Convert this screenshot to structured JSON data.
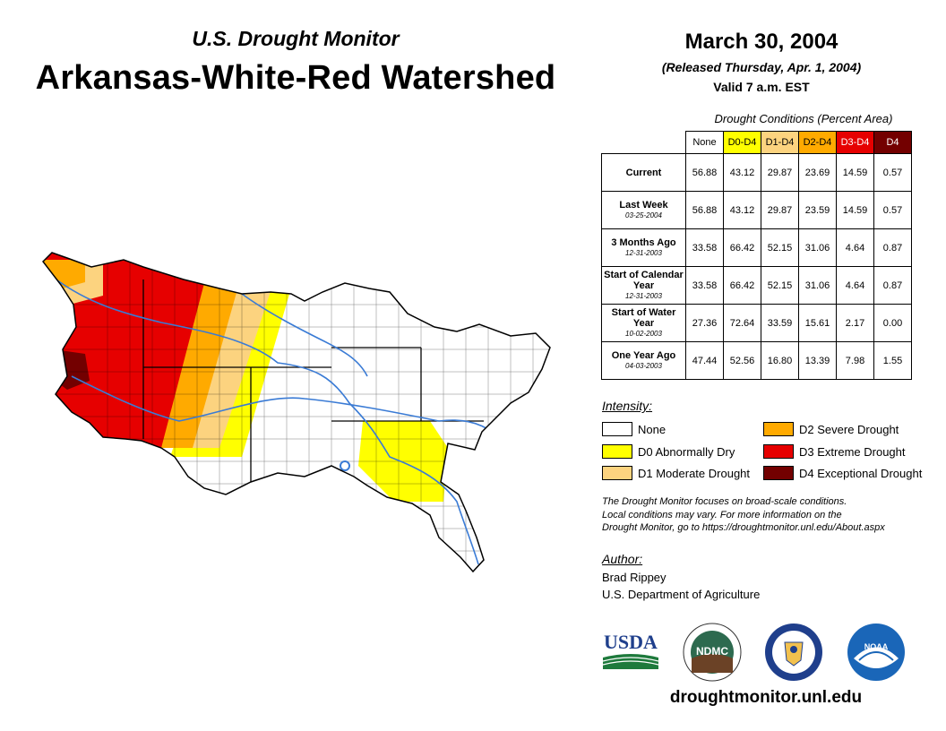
{
  "header": {
    "subtitle": "U.S. Drought Monitor",
    "title": "Arkansas-White-Red Watershed",
    "date": "March 30, 2004",
    "released": "(Released Thursday, Apr. 1, 2004)",
    "valid": "Valid 7 a.m. EST"
  },
  "table": {
    "title": "Drought Conditions (Percent Area)",
    "columns": [
      "None",
      "D0-D4",
      "D1-D4",
      "D2-D4",
      "D3-D4",
      "D4"
    ],
    "column_colors": [
      "#ffffff",
      "#ffff00",
      "#fcd37f",
      "#ffaa00",
      "#e60000",
      "#730000"
    ],
    "rows": [
      {
        "label": "Current",
        "date": "",
        "values": [
          "56.88",
          "43.12",
          "29.87",
          "23.69",
          "14.59",
          "0.57"
        ]
      },
      {
        "label": "Last Week",
        "date": "03-25-2004",
        "values": [
          "56.88",
          "43.12",
          "29.87",
          "23.59",
          "14.59",
          "0.57"
        ]
      },
      {
        "label": "3 Months Ago",
        "date": "12-31-2003",
        "values": [
          "33.58",
          "66.42",
          "52.15",
          "31.06",
          "4.64",
          "0.87"
        ]
      },
      {
        "label": "Start of Calendar Year",
        "date": "12-31-2003",
        "values": [
          "33.58",
          "66.42",
          "52.15",
          "31.06",
          "4.64",
          "0.87"
        ]
      },
      {
        "label": "Start of Water Year",
        "date": "10-02-2003",
        "values": [
          "27.36",
          "72.64",
          "33.59",
          "15.61",
          "2.17",
          "0.00"
        ]
      },
      {
        "label": "One Year Ago",
        "date": "04-03-2003",
        "values": [
          "47.44",
          "52.56",
          "16.80",
          "13.39",
          "7.98",
          "1.55"
        ]
      }
    ]
  },
  "legend": {
    "title": "Intensity:",
    "items": [
      {
        "label": "None",
        "color": "#ffffff"
      },
      {
        "label": "D0 Abnormally Dry",
        "color": "#ffff00"
      },
      {
        "label": "D1 Moderate Drought",
        "color": "#fcd37f"
      },
      {
        "label": "D2 Severe Drought",
        "color": "#ffaa00"
      },
      {
        "label": "D3 Extreme Drought",
        "color": "#e60000"
      },
      {
        "label": "D4 Exceptional Drought",
        "color": "#730000"
      }
    ]
  },
  "note": {
    "line1": "The Drought Monitor focuses on broad-scale conditions.",
    "line2": "Local conditions may vary. For more information on the",
    "line3": "Drought Monitor, go to https://droughtmonitor.unl.edu/About.aspx"
  },
  "author": {
    "title": "Author:",
    "name": "Brad Rippey",
    "org": "U.S. Department of Agriculture"
  },
  "logos": {
    "usda": "USDA",
    "ndmc": "NDMC",
    "noaa": "NOAA"
  },
  "footer": {
    "url": "droughtmonitor.unl.edu"
  }
}
